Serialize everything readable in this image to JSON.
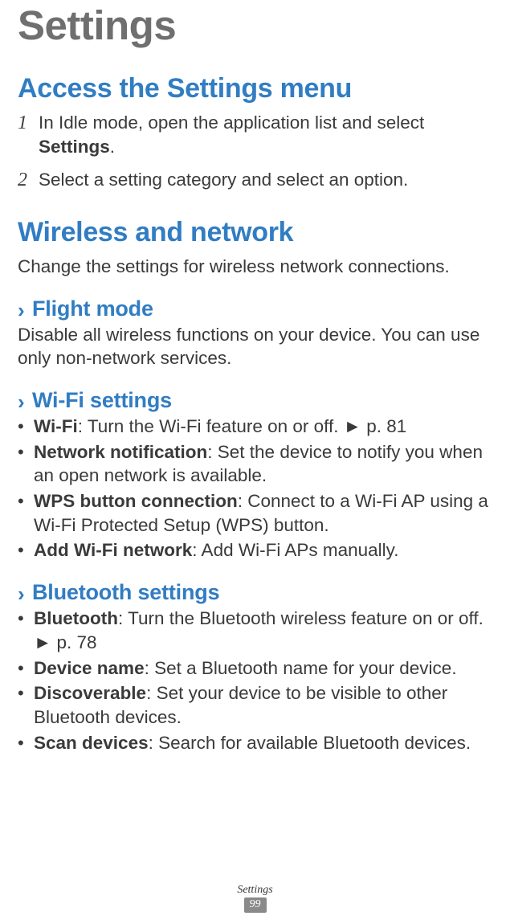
{
  "title": "Settings",
  "sections": {
    "access": {
      "heading": "Access the Settings menu",
      "steps": [
        {
          "num": "1",
          "pre": "In Idle mode, open the application list and select ",
          "bold": "Settings",
          "post": "."
        },
        {
          "num": "2",
          "pre": "Select a setting category and select an option.",
          "bold": "",
          "post": ""
        }
      ]
    },
    "wireless": {
      "heading": "Wireless and network",
      "intro": "Change the settings for wireless network connections.",
      "flight": {
        "heading": "Flight mode",
        "desc": "Disable all wireless functions on your device. You can use only non-network services."
      },
      "wifi": {
        "heading": "Wi-Fi settings",
        "items": [
          {
            "bold": "Wi-Fi",
            "rest": ": Turn the Wi-Fi feature on or off. ► p. 81"
          },
          {
            "bold": "Network notification",
            "rest": ": Set the device to notify you when an open network is available."
          },
          {
            "bold": "WPS button connection",
            "rest": ": Connect to a Wi-Fi AP using a Wi-Fi Protected Setup (WPS) button."
          },
          {
            "bold": "Add Wi-Fi network",
            "rest": ": Add Wi-Fi APs manually."
          }
        ]
      },
      "bluetooth": {
        "heading": "Bluetooth settings",
        "items": [
          {
            "bold": "Bluetooth",
            "rest": ": Turn the Bluetooth wireless feature on or off. ► p. 78"
          },
          {
            "bold": "Device name",
            "rest": ": Set a Bluetooth name for your device."
          },
          {
            "bold": "Discoverable",
            "rest": ": Set your device to be visible to other Bluetooth devices."
          },
          {
            "bold": "Scan devices",
            "rest": ": Search for available Bluetooth devices."
          }
        ]
      }
    }
  },
  "footer": {
    "label": "Settings",
    "page": "99"
  },
  "chevron": "›"
}
